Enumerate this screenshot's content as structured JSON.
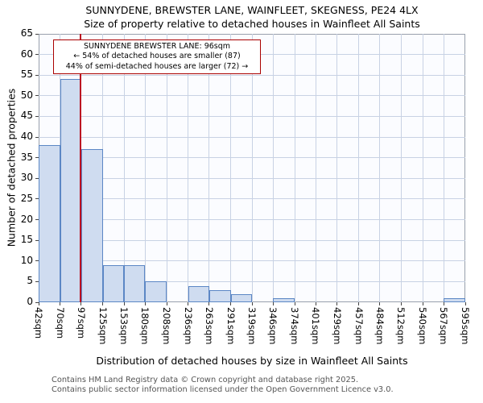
{
  "title": "SUNNYDENE, BREWSTER LANE, WAINFLEET, SKEGNESS, PE24 4LX",
  "subtitle": "Size of property relative to detached houses in Wainfleet All Saints",
  "chart_data": {
    "type": "bar",
    "bin_edges": [
      42,
      70,
      97,
      125,
      153,
      180,
      208,
      236,
      263,
      291,
      319,
      346,
      374,
      401,
      429,
      457,
      484,
      512,
      540,
      567,
      595
    ],
    "values": [
      38,
      54,
      37,
      9,
      9,
      5,
      0,
      4,
      3,
      2,
      0,
      1,
      0,
      0,
      0,
      0,
      0,
      0,
      0,
      1
    ],
    "tick_label_suffix": "sqm",
    "xlabel": "Distribution of detached houses by size in Wainfleet All Saints",
    "ylabel": "Number of detached properties",
    "ylim": [
      0,
      65
    ],
    "ytick_step": 5,
    "grid_on": true,
    "grid_color": "#c8d2e4",
    "bar_fill": "#cfdcf0",
    "bar_border": "#5c87c5",
    "marker": {
      "value": 96,
      "color": "#bb1122"
    },
    "annotation": {
      "line1": "SUNNYDENE BREWSTER LANE: 96sqm",
      "line2": "← 54% of detached houses are smaller (87)",
      "line3": "44% of semi-detached houses are larger (72) →",
      "border_color": "#aa0000"
    }
  },
  "footer": {
    "line1": "Contains HM Land Registry data © Crown copyright and database right 2025.",
    "line2": "Contains public sector information licensed under the Open Government Licence v3.0."
  }
}
